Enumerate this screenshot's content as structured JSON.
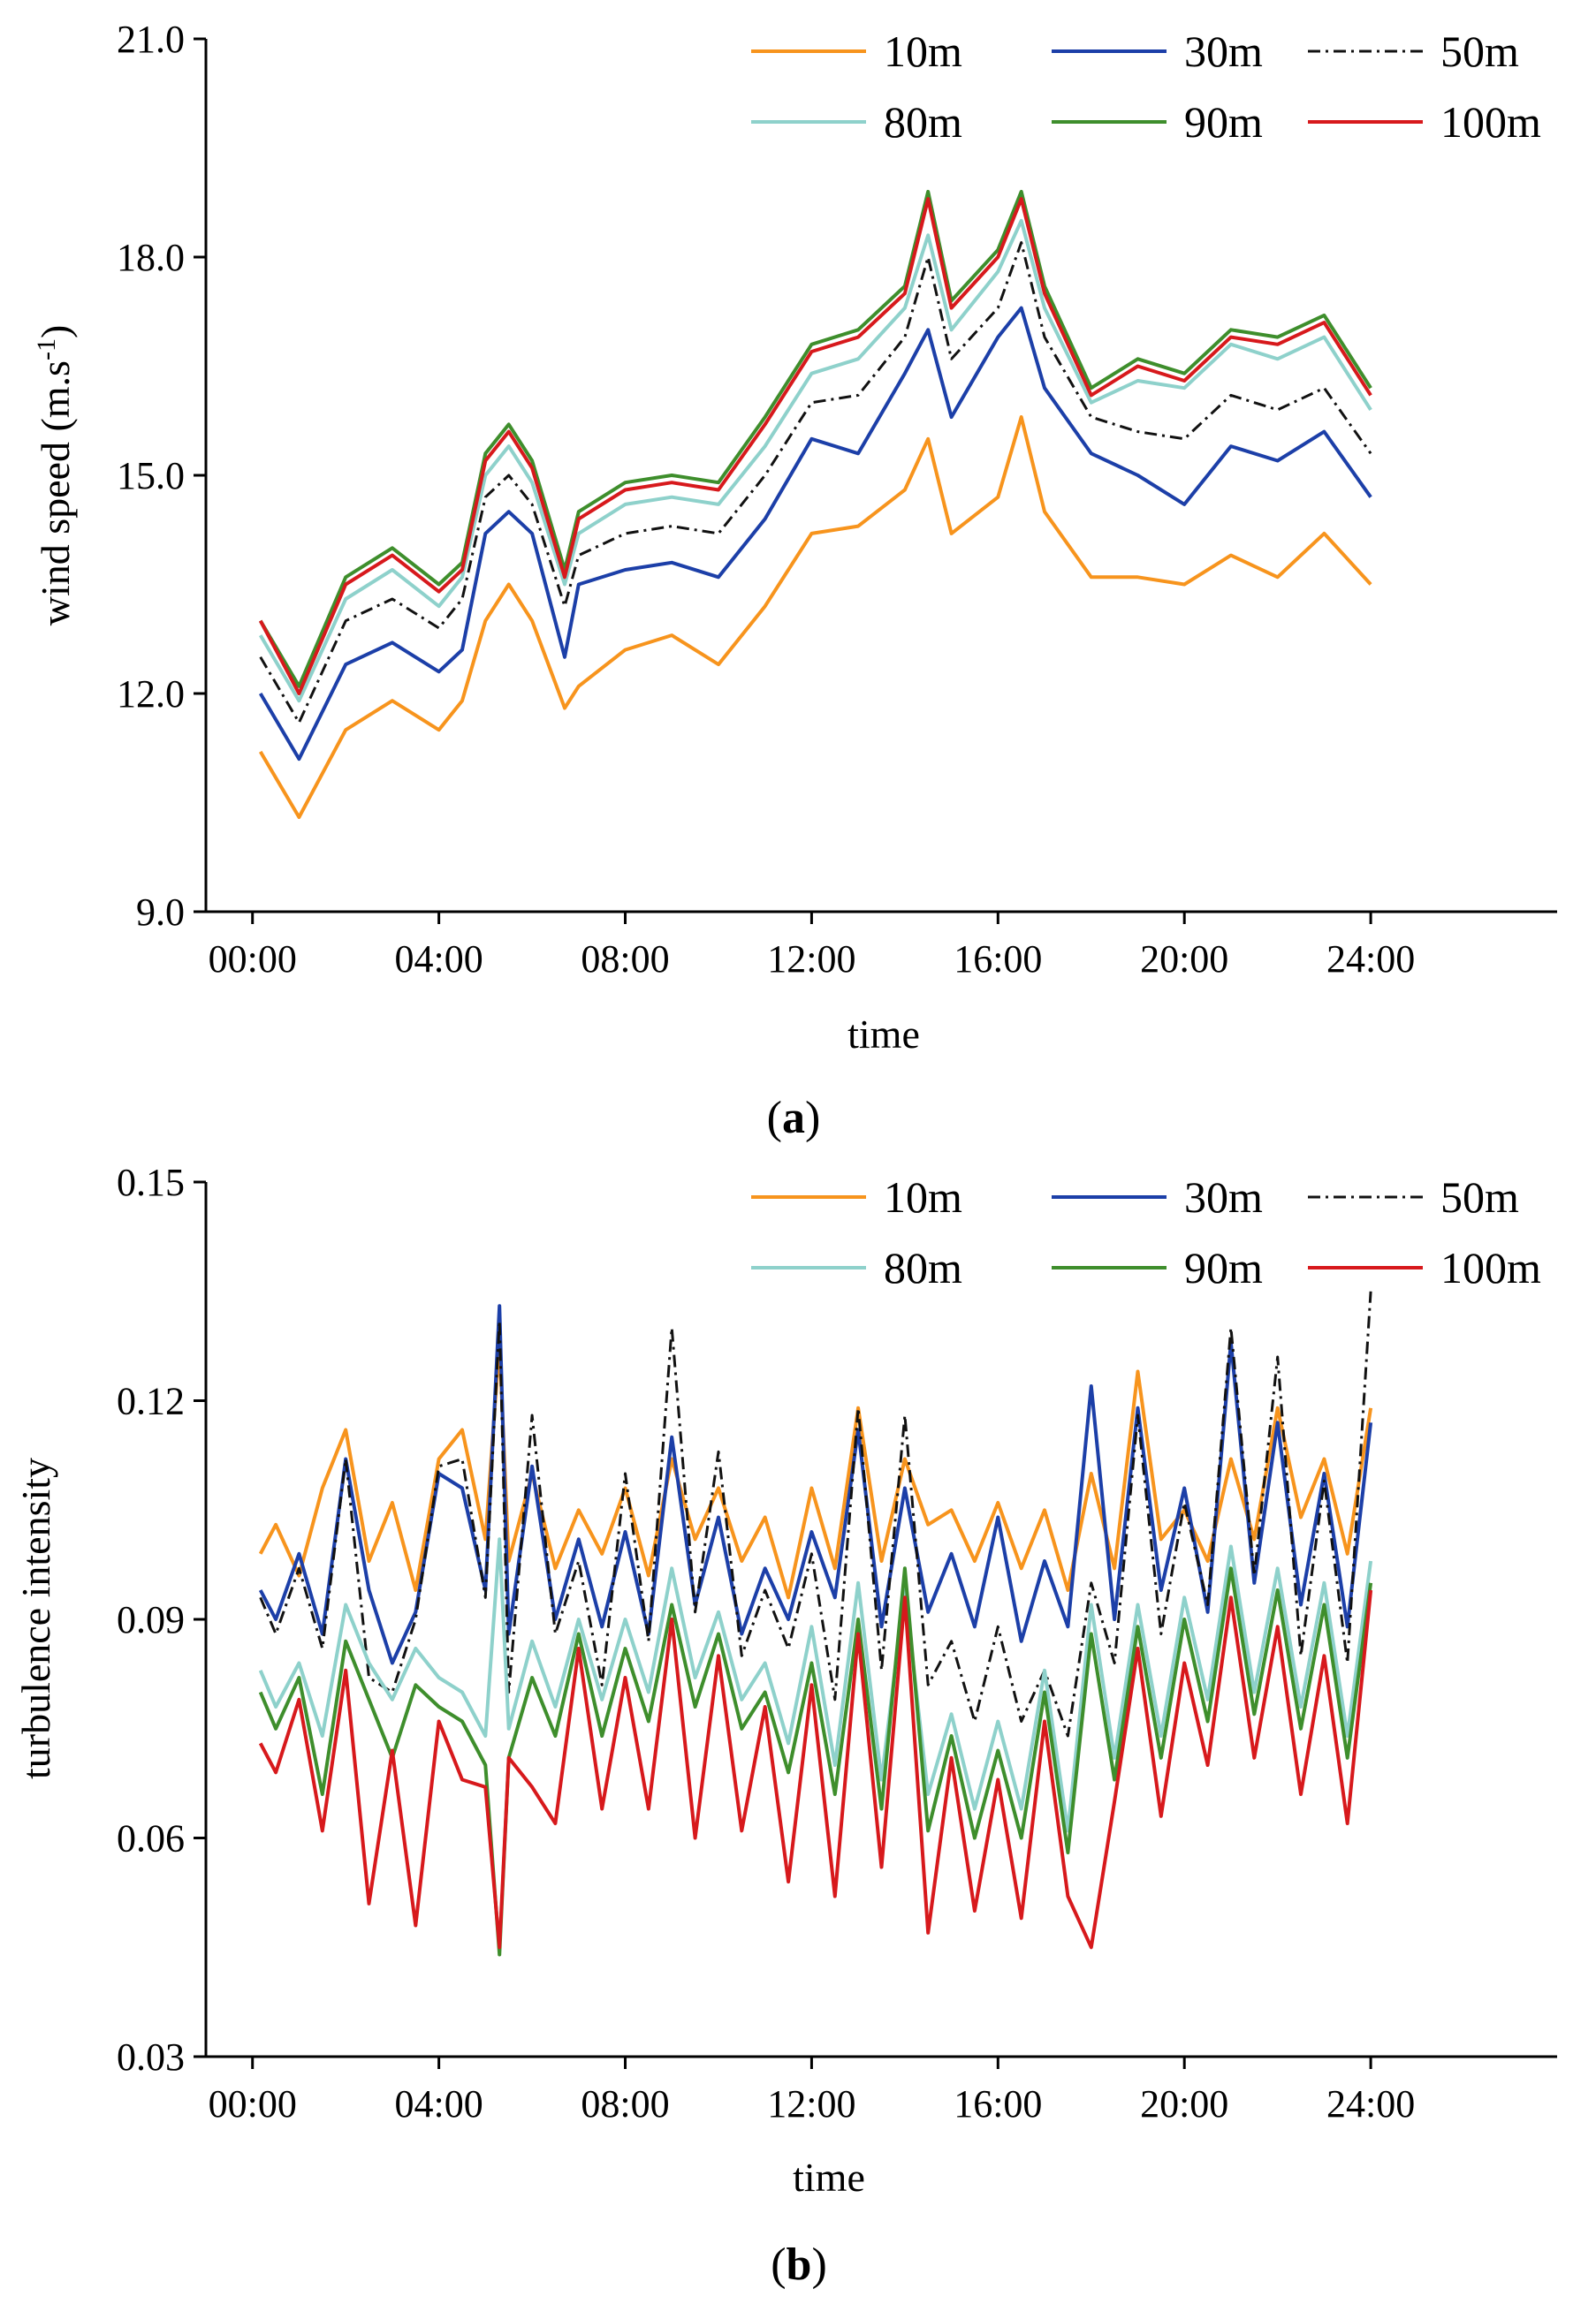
{
  "chart_data": [
    {
      "type": "line",
      "panel_label": "a",
      "title": "",
      "xlabel": "time",
      "ylabel": "wind speed (m.s",
      "ylabel_sup": "-1",
      "ylabel_close": ")",
      "xlim": [
        -1,
        28
      ],
      "ylim": [
        9.0,
        21.0
      ],
      "x_ticks": [
        0,
        4,
        8,
        12,
        16,
        20,
        24
      ],
      "x_tick_labels": [
        "00:00",
        "04:00",
        "08:00",
        "12:00",
        "16:00",
        "20:00",
        "24:00"
      ],
      "y_ticks": [
        9.0,
        12.0,
        15.0,
        18.0,
        21.0
      ],
      "y_tick_labels": [
        "9.0",
        "12.0",
        "15.0",
        "18.0",
        "21.0"
      ],
      "legend_position": "top-right",
      "x": [
        0.17,
        1.0,
        2.0,
        3.0,
        4.0,
        4.5,
        5.0,
        5.5,
        6.0,
        6.7,
        7.0,
        8.0,
        9.0,
        10.0,
        11.0,
        12.0,
        13.0,
        14.0,
        14.5,
        15.0,
        16.0,
        16.5,
        17.0,
        18.0,
        19.0,
        20.0,
        21.0,
        22.0,
        23.0,
        24.0
      ],
      "series": [
        {
          "name": "10m",
          "color": "#F7941D",
          "dash": "",
          "values": [
            11.2,
            10.3,
            11.5,
            11.9,
            11.5,
            11.9,
            13.0,
            13.5,
            13.0,
            11.8,
            12.1,
            12.6,
            12.8,
            12.4,
            13.2,
            14.2,
            14.3,
            14.8,
            15.5,
            14.2,
            14.7,
            15.8,
            14.5,
            13.6,
            13.6,
            13.5,
            13.9,
            13.6,
            14.2,
            13.5
          ]
        },
        {
          "name": "30m",
          "color": "#1C3FA8",
          "dash": "",
          "values": [
            12.0,
            11.1,
            12.4,
            12.7,
            12.3,
            12.6,
            14.2,
            14.5,
            14.2,
            12.5,
            13.5,
            13.7,
            13.8,
            13.6,
            14.4,
            15.5,
            15.3,
            16.4,
            17.0,
            15.8,
            16.9,
            17.3,
            16.2,
            15.3,
            15.0,
            14.6,
            15.4,
            15.2,
            15.6,
            14.7
          ]
        },
        {
          "name": "50m",
          "color": "#111111",
          "dash": "14,6,3,6",
          "values": [
            12.5,
            11.6,
            13.0,
            13.3,
            12.9,
            13.3,
            14.7,
            15.0,
            14.6,
            13.2,
            13.9,
            14.2,
            14.3,
            14.2,
            15.0,
            16.0,
            16.1,
            16.9,
            18.0,
            16.6,
            17.3,
            18.2,
            16.9,
            15.8,
            15.6,
            15.5,
            16.1,
            15.9,
            16.2,
            15.3
          ]
        },
        {
          "name": "80m",
          "color": "#8ED1CB",
          "dash": "",
          "values": [
            12.8,
            11.9,
            13.3,
            13.7,
            13.2,
            13.6,
            15.0,
            15.4,
            14.9,
            13.5,
            14.2,
            14.6,
            14.7,
            14.6,
            15.4,
            16.4,
            16.6,
            17.3,
            18.3,
            17.0,
            17.8,
            18.5,
            17.3,
            16.0,
            16.3,
            16.2,
            16.8,
            16.6,
            16.9,
            15.9
          ]
        },
        {
          "name": "90m",
          "color": "#3E8E2C",
          "dash": "",
          "values": [
            13.0,
            12.1,
            13.6,
            14.0,
            13.5,
            13.8,
            15.3,
            15.7,
            15.2,
            13.7,
            14.5,
            14.9,
            15.0,
            14.9,
            15.8,
            16.8,
            17.0,
            17.6,
            18.9,
            17.4,
            18.1,
            18.9,
            17.6,
            16.2,
            16.6,
            16.4,
            17.0,
            16.9,
            17.2,
            16.2
          ]
        },
        {
          "name": "100m",
          "color": "#D7191C",
          "dash": "",
          "values": [
            13.0,
            12.0,
            13.5,
            13.9,
            13.4,
            13.7,
            15.2,
            15.6,
            15.1,
            13.6,
            14.4,
            14.8,
            14.9,
            14.8,
            15.7,
            16.7,
            16.9,
            17.5,
            18.8,
            17.3,
            18.0,
            18.8,
            17.5,
            16.1,
            16.5,
            16.3,
            16.9,
            16.8,
            17.1,
            16.1
          ]
        }
      ]
    },
    {
      "type": "line",
      "panel_label": "b",
      "title": "",
      "xlabel": "time",
      "ylabel": "turbulence intensity",
      "xlim": [
        -1,
        28
      ],
      "ylim": [
        0.03,
        0.15
      ],
      "x_ticks": [
        0,
        4,
        8,
        12,
        16,
        20,
        24
      ],
      "x_tick_labels": [
        "00:00",
        "04:00",
        "08:00",
        "12:00",
        "16:00",
        "20:00",
        "24:00"
      ],
      "y_ticks": [
        0.03,
        0.06,
        0.09,
        0.12,
        0.15
      ],
      "y_tick_labels": [
        "0.03",
        "0.06",
        "0.09",
        "0.12",
        "0.15"
      ],
      "legend_position": "top-right",
      "x": [
        0.17,
        0.5,
        1.0,
        1.5,
        2.0,
        2.5,
        3.0,
        3.5,
        4.0,
        4.5,
        5.0,
        5.3,
        5.5,
        6.0,
        6.5,
        7.0,
        7.5,
        8.0,
        8.5,
        9.0,
        9.5,
        10.0,
        10.5,
        11.0,
        11.5,
        12.0,
        12.5,
        13.0,
        13.5,
        14.0,
        14.5,
        15.0,
        15.5,
        16.0,
        16.5,
        17.0,
        17.5,
        18.0,
        18.5,
        19.0,
        19.5,
        20.0,
        20.5,
        21.0,
        21.5,
        22.0,
        22.5,
        23.0,
        23.5,
        24.0
      ],
      "series": [
        {
          "name": "10m",
          "color": "#F7941D",
          "dash": "",
          "values": [
            0.099,
            0.103,
            0.096,
            0.108,
            0.116,
            0.098,
            0.106,
            0.094,
            0.112,
            0.116,
            0.101,
            0.128,
            0.098,
            0.11,
            0.097,
            0.105,
            0.099,
            0.108,
            0.096,
            0.112,
            0.101,
            0.108,
            0.098,
            0.104,
            0.093,
            0.108,
            0.097,
            0.119,
            0.098,
            0.112,
            0.103,
            0.105,
            0.098,
            0.106,
            0.097,
            0.105,
            0.094,
            0.11,
            0.097,
            0.124,
            0.101,
            0.105,
            0.098,
            0.112,
            0.101,
            0.119,
            0.104,
            0.112,
            0.099,
            0.119
          ]
        },
        {
          "name": "30m",
          "color": "#1C3FA8",
          "dash": "",
          "values": [
            0.094,
            0.09,
            0.099,
            0.088,
            0.112,
            0.094,
            0.084,
            0.091,
            0.11,
            0.108,
            0.094,
            0.133,
            0.088,
            0.111,
            0.09,
            0.101,
            0.089,
            0.102,
            0.088,
            0.115,
            0.092,
            0.104,
            0.088,
            0.097,
            0.09,
            0.102,
            0.093,
            0.116,
            0.089,
            0.108,
            0.091,
            0.099,
            0.089,
            0.104,
            0.087,
            0.098,
            0.089,
            0.122,
            0.09,
            0.119,
            0.094,
            0.108,
            0.091,
            0.128,
            0.095,
            0.117,
            0.092,
            0.11,
            0.089,
            0.117
          ]
        },
        {
          "name": "50m",
          "color": "#111111",
          "dash": "14,6,3,6",
          "values": [
            0.093,
            0.088,
            0.097,
            0.086,
            0.112,
            0.082,
            0.08,
            0.09,
            0.111,
            0.112,
            0.093,
            0.131,
            0.08,
            0.118,
            0.088,
            0.098,
            0.081,
            0.11,
            0.087,
            0.13,
            0.091,
            0.113,
            0.085,
            0.094,
            0.086,
            0.099,
            0.079,
            0.119,
            0.083,
            0.118,
            0.081,
            0.087,
            0.076,
            0.089,
            0.076,
            0.083,
            0.074,
            0.095,
            0.084,
            0.118,
            0.088,
            0.106,
            0.092,
            0.13,
            0.096,
            0.126,
            0.085,
            0.109,
            0.084,
            0.135
          ]
        },
        {
          "name": "80m",
          "color": "#8ED1CB",
          "dash": "",
          "values": [
            0.083,
            0.078,
            0.084,
            0.074,
            0.092,
            0.084,
            0.079,
            0.086,
            0.082,
            0.08,
            0.074,
            0.101,
            0.075,
            0.087,
            0.078,
            0.09,
            0.079,
            0.09,
            0.08,
            0.097,
            0.082,
            0.091,
            0.079,
            0.084,
            0.073,
            0.089,
            0.07,
            0.095,
            0.068,
            0.094,
            0.066,
            0.077,
            0.064,
            0.076,
            0.064,
            0.083,
            0.061,
            0.092,
            0.071,
            0.092,
            0.074,
            0.093,
            0.079,
            0.1,
            0.08,
            0.097,
            0.078,
            0.095,
            0.074,
            0.098
          ]
        },
        {
          "name": "90m",
          "color": "#3E8E2C",
          "dash": "",
          "values": [
            0.08,
            0.075,
            0.082,
            0.066,
            0.087,
            0.079,
            0.071,
            0.081,
            0.078,
            0.076,
            0.07,
            0.044,
            0.071,
            0.082,
            0.074,
            0.088,
            0.074,
            0.086,
            0.076,
            0.092,
            0.078,
            0.088,
            0.075,
            0.08,
            0.069,
            0.084,
            0.066,
            0.09,
            0.064,
            0.097,
            0.061,
            0.074,
            0.06,
            0.072,
            0.06,
            0.08,
            0.058,
            0.088,
            0.068,
            0.089,
            0.071,
            0.09,
            0.076,
            0.097,
            0.077,
            0.094,
            0.075,
            0.092,
            0.071,
            0.095
          ]
        },
        {
          "name": "100m",
          "color": "#D7191C",
          "dash": "",
          "values": [
            0.073,
            0.069,
            0.079,
            0.061,
            0.083,
            0.051,
            0.072,
            0.048,
            0.076,
            0.068,
            0.067,
            0.045,
            0.071,
            0.067,
            0.062,
            0.086,
            0.064,
            0.082,
            0.064,
            0.09,
            0.06,
            0.085,
            0.061,
            0.078,
            0.054,
            0.081,
            0.052,
            0.088,
            0.056,
            0.093,
            0.047,
            0.071,
            0.05,
            0.068,
            0.049,
            0.076,
            0.052,
            0.045,
            0.065,
            0.086,
            0.063,
            0.084,
            0.07,
            0.093,
            0.071,
            0.089,
            0.066,
            0.085,
            0.062,
            0.094
          ]
        }
      ]
    }
  ]
}
